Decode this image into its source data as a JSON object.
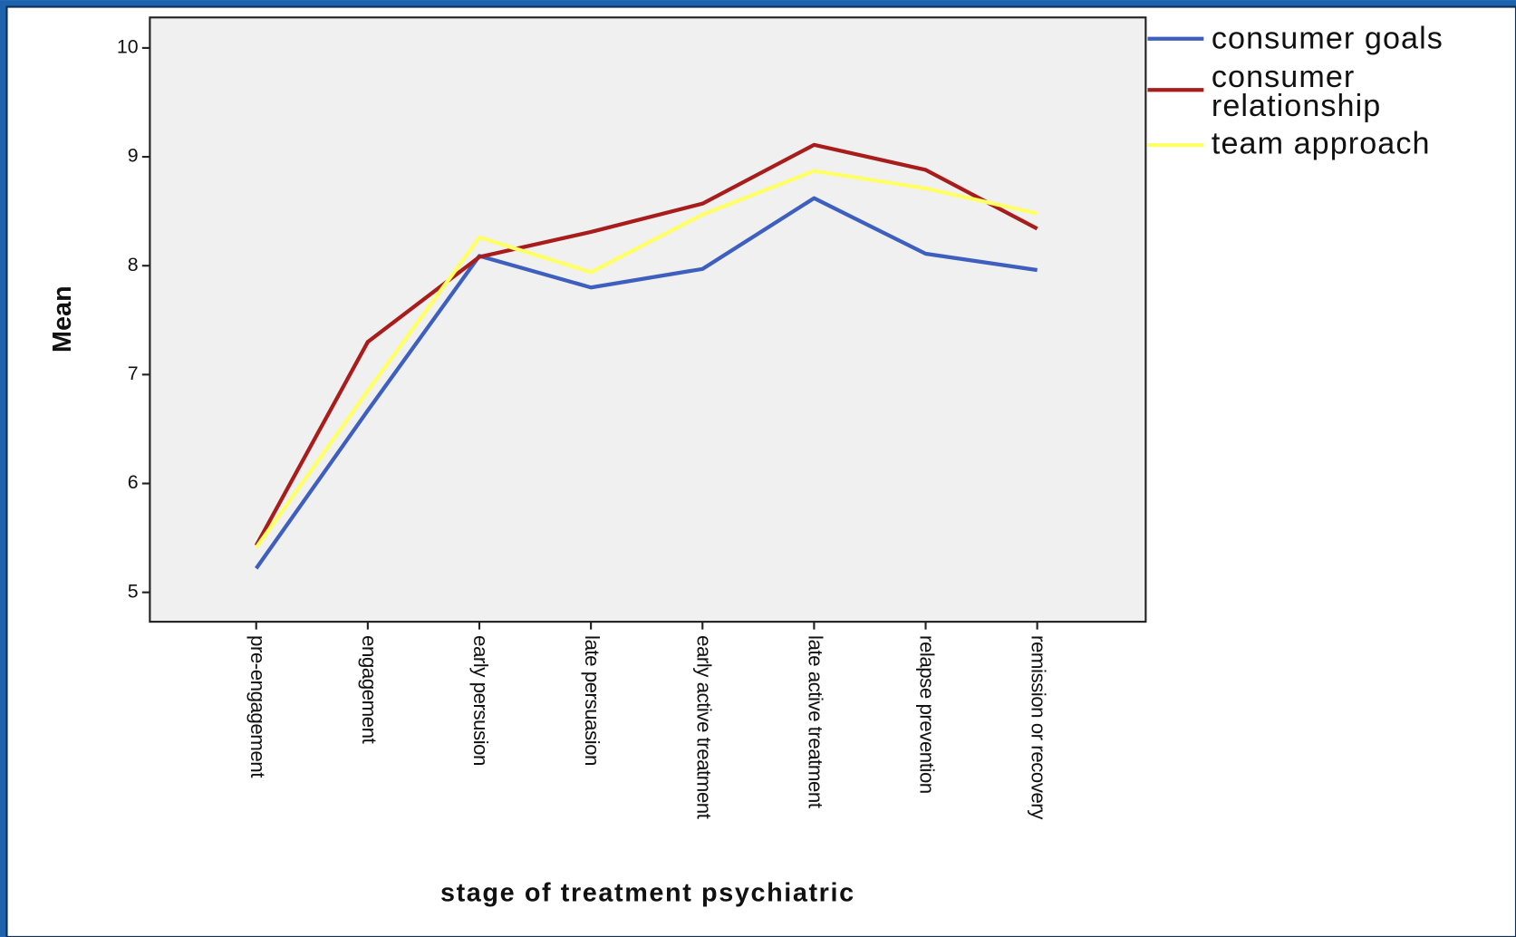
{
  "chart_data": {
    "type": "line",
    "x_label": "stage of treatment psychiatric",
    "y_label": "Mean",
    "categories": [
      "pre-engagement",
      "engagement",
      "early persusion",
      "late persuasion",
      "early active treatment",
      "late active treatment",
      "relapse prevention",
      "remission or recovery"
    ],
    "series": [
      {
        "name": "consumer goals",
        "color": "#3f5fbf",
        "values": [
          5.22,
          6.67,
          8.09,
          7.8,
          7.97,
          8.62,
          8.11,
          7.96
        ]
      },
      {
        "name": "consumer relationship",
        "color": "#a81c1c",
        "values": [
          5.43,
          7.3,
          8.08,
          8.31,
          8.57,
          9.11,
          8.88,
          8.34
        ]
      },
      {
        "name": "team approach",
        "color": "#ffff66",
        "values": [
          5.41,
          6.85,
          8.26,
          7.94,
          8.47,
          8.87,
          8.71,
          8.48
        ]
      }
    ],
    "ylim": [
      4.73,
      10.28
    ],
    "yticks": [
      5,
      6,
      7,
      8,
      9,
      10
    ],
    "grid": false,
    "legend": "right"
  }
}
